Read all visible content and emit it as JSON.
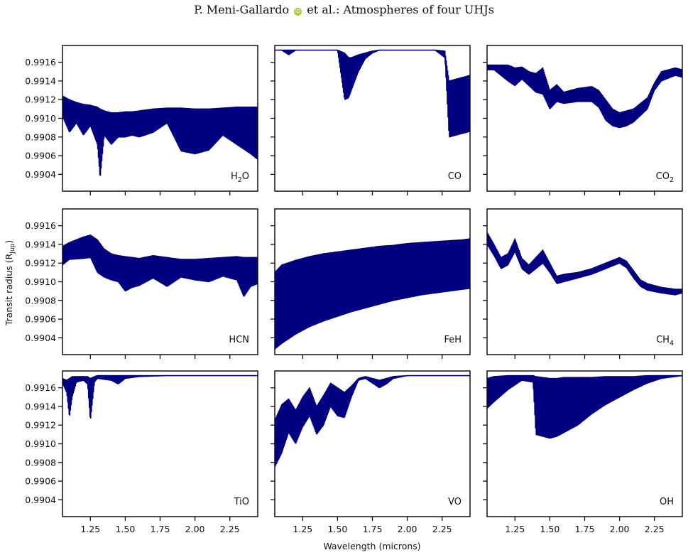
{
  "header": {
    "author": "P. Meni-Gallardo",
    "orcid_icon": "orcid-icon",
    "rest": "et al.: Atmospheres of four UHJs"
  },
  "chart_data": {
    "type": "line",
    "layout": "3x3 grid of panels, shared x and y axes",
    "xlabel": "Wavelength (microns)",
    "ylabel": "Transit radius (R_Jup)",
    "xlim": [
      1.05,
      2.45
    ],
    "ylim": [
      0.99022,
      0.99178
    ],
    "xticks": [
      1.25,
      1.5,
      1.75,
      2.0,
      2.25
    ],
    "xtick_labels": [
      "1.25",
      "1.50",
      "1.75",
      "2.00",
      "2.25"
    ],
    "yticks": [
      0.9904,
      0.9906,
      0.9908,
      0.991,
      0.9912,
      0.9914,
      0.9916
    ],
    "ytick_labels": [
      "0.9904",
      "0.9906",
      "0.9908",
      "0.9910",
      "0.9912",
      "0.9914",
      "0.9916"
    ],
    "line_color": "#000080",
    "grid": false,
    "panels": [
      {
        "id": "h2o",
        "label": "H",
        "label_sub": "2",
        "label_tail": "O",
        "x": [
          1.05,
          1.1,
          1.15,
          1.2,
          1.25,
          1.3,
          1.32,
          1.35,
          1.4,
          1.45,
          1.5,
          1.55,
          1.6,
          1.7,
          1.8,
          1.9,
          2.0,
          2.1,
          2.2,
          2.3,
          2.4,
          2.45
        ],
        "upper": [
          0.99124,
          0.9912,
          0.99117,
          0.99115,
          0.99114,
          0.99112,
          0.9911,
          0.99108,
          0.99106,
          0.99106,
          0.99107,
          0.99107,
          0.99108,
          0.9911,
          0.99111,
          0.99111,
          0.9911,
          0.9911,
          0.99111,
          0.99112,
          0.99112,
          0.99112
        ],
        "lower": [
          0.99102,
          0.99085,
          0.99095,
          0.99082,
          0.99092,
          0.99072,
          0.99035,
          0.99082,
          0.99072,
          0.9908,
          0.9908,
          0.99082,
          0.9908,
          0.99085,
          0.99095,
          0.99065,
          0.99062,
          0.99066,
          0.99082,
          0.99072,
          0.99062,
          0.99056
        ]
      },
      {
        "id": "co",
        "label": "CO",
        "x": [
          1.05,
          1.1,
          1.15,
          1.2,
          1.3,
          1.4,
          1.5,
          1.55,
          1.58,
          1.6,
          1.65,
          1.7,
          1.75,
          1.8,
          1.9,
          2.0,
          2.1,
          2.2,
          2.27,
          2.3,
          2.35,
          2.4,
          2.45
        ],
        "upper": [
          0.99173,
          0.99173,
          0.99173,
          0.99173,
          0.99173,
          0.99173,
          0.99173,
          0.9917,
          0.99165,
          0.99165,
          0.99168,
          0.9917,
          0.99172,
          0.99173,
          0.99173,
          0.99173,
          0.99173,
          0.99173,
          0.99172,
          0.9914,
          0.99142,
          0.99144,
          0.99146
        ],
        "lower": [
          0.99173,
          0.99173,
          0.99168,
          0.99173,
          0.99173,
          0.99173,
          0.99173,
          0.9912,
          0.99122,
          0.9913,
          0.9915,
          0.99164,
          0.9917,
          0.99173,
          0.99173,
          0.99173,
          0.99173,
          0.99173,
          0.99165,
          0.9908,
          0.99082,
          0.99084,
          0.99086
        ]
      },
      {
        "id": "co2",
        "label": "CO",
        "label_sub": "2",
        "label_tail": "",
        "x": [
          1.05,
          1.1,
          1.2,
          1.25,
          1.3,
          1.35,
          1.4,
          1.45,
          1.5,
          1.55,
          1.6,
          1.7,
          1.8,
          1.85,
          1.9,
          1.95,
          2.0,
          2.05,
          2.1,
          2.2,
          2.25,
          2.3,
          2.4,
          2.45
        ],
        "upper": [
          0.99157,
          0.99157,
          0.99157,
          0.99154,
          0.99155,
          0.9915,
          0.99148,
          0.99154,
          0.9913,
          0.99136,
          0.99128,
          0.99132,
          0.99134,
          0.9913,
          0.9912,
          0.9911,
          0.99106,
          0.99108,
          0.9911,
          0.99122,
          0.99138,
          0.9915,
          0.99154,
          0.99152
        ],
        "lower": [
          0.99152,
          0.99152,
          0.9914,
          0.99135,
          0.99142,
          0.99135,
          0.99128,
          0.99126,
          0.9911,
          0.99118,
          0.99116,
          0.99118,
          0.99118,
          0.99112,
          0.99098,
          0.99092,
          0.9909,
          0.99092,
          0.99096,
          0.9911,
          0.9913,
          0.9914,
          0.99146,
          0.99144
        ]
      },
      {
        "id": "hcn",
        "label": "HCN",
        "x": [
          1.05,
          1.1,
          1.2,
          1.25,
          1.3,
          1.35,
          1.4,
          1.45,
          1.5,
          1.55,
          1.6,
          1.7,
          1.8,
          1.9,
          2.0,
          2.1,
          2.2,
          2.3,
          2.35,
          2.4,
          2.45
        ],
        "upper": [
          0.99138,
          0.99142,
          0.99148,
          0.9915,
          0.99145,
          0.99135,
          0.9913,
          0.99128,
          0.99127,
          0.99126,
          0.99125,
          0.99128,
          0.99126,
          0.99124,
          0.99124,
          0.99125,
          0.99126,
          0.99127,
          0.99126,
          0.99126,
          0.99126
        ],
        "lower": [
          0.99118,
          0.99124,
          0.99125,
          0.99126,
          0.9911,
          0.99105,
          0.99102,
          0.991,
          0.9909,
          0.99094,
          0.99096,
          0.99104,
          0.99095,
          0.99105,
          0.99102,
          0.991,
          0.99106,
          0.99102,
          0.99084,
          0.99095,
          0.99098
        ]
      },
      {
        "id": "feh",
        "label": "FeH",
        "x": [
          1.05,
          1.1,
          1.2,
          1.3,
          1.4,
          1.5,
          1.6,
          1.7,
          1.8,
          1.9,
          2.0,
          2.1,
          2.2,
          2.3,
          2.4,
          2.45
        ],
        "upper": [
          0.9911,
          0.99118,
          0.99123,
          0.99127,
          0.9913,
          0.99132,
          0.99134,
          0.99136,
          0.99138,
          0.99139,
          0.99141,
          0.99142,
          0.99143,
          0.99144,
          0.99145,
          0.99146
        ],
        "lower": [
          0.99028,
          0.99034,
          0.99044,
          0.99052,
          0.99058,
          0.99063,
          0.99068,
          0.99072,
          0.99076,
          0.9908,
          0.99083,
          0.99086,
          0.99088,
          0.9909,
          0.99092,
          0.99093
        ]
      },
      {
        "id": "ch4",
        "label": "CH",
        "label_sub": "4",
        "label_tail": "",
        "x": [
          1.05,
          1.1,
          1.15,
          1.2,
          1.25,
          1.3,
          1.35,
          1.4,
          1.45,
          1.5,
          1.55,
          1.6,
          1.7,
          1.8,
          1.9,
          2.0,
          2.05,
          2.1,
          2.15,
          2.2,
          2.3,
          2.4,
          2.45
        ],
        "upper": [
          0.99153,
          0.9914,
          0.99126,
          0.9913,
          0.99146,
          0.99125,
          0.99118,
          0.99126,
          0.99134,
          0.9912,
          0.99106,
          0.99108,
          0.9911,
          0.99114,
          0.9912,
          0.99126,
          0.99122,
          0.99112,
          0.99102,
          0.99098,
          0.99094,
          0.99092,
          0.99092
        ],
        "lower": [
          0.9914,
          0.99128,
          0.99114,
          0.99118,
          0.99132,
          0.99114,
          0.99108,
          0.99114,
          0.9912,
          0.9911,
          0.99098,
          0.991,
          0.99104,
          0.99108,
          0.99114,
          0.9912,
          0.99115,
          0.99104,
          0.99095,
          0.99091,
          0.99088,
          0.99086,
          0.99088
        ]
      },
      {
        "id": "tio",
        "label": "TiO",
        "x": [
          1.05,
          1.08,
          1.1,
          1.12,
          1.15,
          1.2,
          1.23,
          1.25,
          1.28,
          1.3,
          1.4,
          1.45,
          1.5,
          1.6,
          1.8,
          2.0,
          2.2,
          2.45
        ],
        "upper": [
          0.9917,
          0.99168,
          0.9917,
          0.99172,
          0.99172,
          0.99172,
          0.99172,
          0.9917,
          0.99172,
          0.99173,
          0.99173,
          0.99173,
          0.99173,
          0.99173,
          0.99173,
          0.99173,
          0.99173,
          0.99173
        ],
        "lower": [
          0.99165,
          0.99155,
          0.99128,
          0.9915,
          0.99166,
          0.99168,
          0.99164,
          0.99124,
          0.99166,
          0.9917,
          0.99168,
          0.99164,
          0.9917,
          0.99172,
          0.99173,
          0.99173,
          0.99173,
          0.99173
        ]
      },
      {
        "id": "vo",
        "label": "VO",
        "x": [
          1.05,
          1.1,
          1.15,
          1.2,
          1.25,
          1.3,
          1.35,
          1.4,
          1.45,
          1.5,
          1.55,
          1.6,
          1.65,
          1.7,
          1.8,
          1.85,
          1.9,
          2.0,
          2.2,
          2.45
        ],
        "upper": [
          0.99125,
          0.99142,
          0.99148,
          0.99136,
          0.9915,
          0.9916,
          0.9914,
          0.99152,
          0.99165,
          0.9916,
          0.99155,
          0.99162,
          0.9917,
          0.99172,
          0.99168,
          0.9917,
          0.99172,
          0.99173,
          0.99173,
          0.99173
        ],
        "lower": [
          0.99075,
          0.9909,
          0.99112,
          0.991,
          0.99118,
          0.9913,
          0.9911,
          0.9912,
          0.9914,
          0.9913,
          0.99128,
          0.9915,
          0.99168,
          0.9917,
          0.9916,
          0.99164,
          0.9917,
          0.99173,
          0.99173,
          0.99173
        ]
      },
      {
        "id": "oh",
        "label": "OH",
        "x": [
          1.05,
          1.1,
          1.2,
          1.3,
          1.38,
          1.4,
          1.45,
          1.5,
          1.55,
          1.6,
          1.7,
          1.8,
          1.9,
          2.0,
          2.1,
          2.2,
          2.3,
          2.4,
          2.45
        ],
        "upper": [
          0.9917,
          0.99172,
          0.99173,
          0.99173,
          0.99173,
          0.99172,
          0.99171,
          0.9917,
          0.9917,
          0.99171,
          0.99171,
          0.99171,
          0.99172,
          0.99172,
          0.99172,
          0.99173,
          0.99173,
          0.99173,
          0.99173
        ],
        "lower": [
          0.99138,
          0.99145,
          0.99158,
          0.99168,
          0.99166,
          0.9911,
          0.99108,
          0.99106,
          0.99108,
          0.99112,
          0.9912,
          0.99132,
          0.99142,
          0.9915,
          0.99158,
          0.99165,
          0.9917,
          0.99172,
          0.99173
        ]
      }
    ]
  }
}
